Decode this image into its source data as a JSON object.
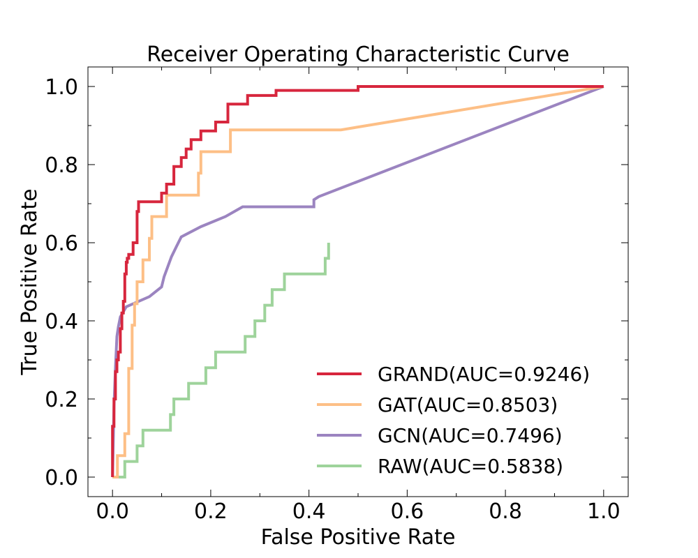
{
  "chart_data": {
    "type": "line",
    "title": "Receiver Operating Characteristic Curve",
    "xlabel": "False Positive Rate",
    "ylabel": "True Positive Rate",
    "xlim": [
      -0.05,
      1.05
    ],
    "ylim": [
      -0.05,
      1.05
    ],
    "xticks": [
      0.0,
      0.2,
      0.4,
      0.6,
      0.8,
      1.0
    ],
    "xtick_labels": [
      "0.0",
      "0.2",
      "0.4",
      "0.6",
      "0.8",
      "1.0"
    ],
    "yticks": [
      0.0,
      0.2,
      0.4,
      0.6,
      0.8,
      1.0
    ],
    "ytick_labels": [
      "0.0",
      "0.2",
      "0.4",
      "0.6",
      "0.8",
      "1.0"
    ],
    "minor_step": 0.1,
    "grid": false,
    "legend_position": "lower-right",
    "series": [
      {
        "name": "GRAND(AUC=0.9246)",
        "color": "#d7263d",
        "x": [
          0.0,
          0.0,
          0.003,
          0.003,
          0.006,
          0.006,
          0.009,
          0.009,
          0.012,
          0.012,
          0.016,
          0.016,
          0.019,
          0.019,
          0.022,
          0.022,
          0.025,
          0.025,
          0.028,
          0.028,
          0.03,
          0.03,
          0.033,
          0.033,
          0.042,
          0.042,
          0.05,
          0.05,
          0.053,
          0.053,
          0.1,
          0.1,
          0.11,
          0.11,
          0.125,
          0.125,
          0.14,
          0.14,
          0.15,
          0.15,
          0.16,
          0.16,
          0.18,
          0.18,
          0.21,
          0.21,
          0.235,
          0.235,
          0.275,
          0.275,
          0.333,
          0.333,
          0.5,
          0.5,
          1.0
        ],
        "y": [
          0.0,
          0.13,
          0.13,
          0.2,
          0.2,
          0.27,
          0.27,
          0.3,
          0.3,
          0.32,
          0.32,
          0.38,
          0.38,
          0.42,
          0.42,
          0.45,
          0.45,
          0.52,
          0.52,
          0.55,
          0.55,
          0.56,
          0.56,
          0.57,
          0.57,
          0.6,
          0.6,
          0.68,
          0.68,
          0.705,
          0.705,
          0.727,
          0.727,
          0.75,
          0.75,
          0.795,
          0.795,
          0.818,
          0.818,
          0.84,
          0.84,
          0.864,
          0.864,
          0.886,
          0.886,
          0.909,
          0.909,
          0.955,
          0.955,
          0.977,
          0.977,
          0.99,
          0.99,
          1.0,
          1.0
        ]
      },
      {
        "name": "GAT(AUC=0.8503)",
        "color": "#fdbf86",
        "x": [
          0.0,
          0.01,
          0.01,
          0.025,
          0.025,
          0.033,
          0.033,
          0.04,
          0.04,
          0.045,
          0.045,
          0.05,
          0.05,
          0.062,
          0.062,
          0.075,
          0.075,
          0.08,
          0.08,
          0.11,
          0.11,
          0.175,
          0.175,
          0.18,
          0.18,
          0.24,
          0.24,
          0.465,
          1.0
        ],
        "y": [
          0.0,
          0.0,
          0.055,
          0.055,
          0.111,
          0.111,
          0.278,
          0.278,
          0.389,
          0.389,
          0.444,
          0.444,
          0.5,
          0.5,
          0.556,
          0.556,
          0.611,
          0.611,
          0.667,
          0.667,
          0.722,
          0.722,
          0.778,
          0.778,
          0.833,
          0.833,
          0.889,
          0.889,
          1.0
        ]
      },
      {
        "name": "GCN(AUC=0.7496)",
        "color": "#9b84c0",
        "x": [
          0.0,
          0.003,
          0.003,
          0.006,
          0.006,
          0.009,
          0.009,
          0.012,
          0.012,
          0.016,
          0.016,
          0.028,
          0.028,
          0.075,
          0.075,
          0.1,
          0.1,
          0.105,
          0.105,
          0.12,
          0.12,
          0.13,
          0.13,
          0.14,
          0.14,
          0.18,
          0.18,
          0.23,
          0.23,
          0.265,
          0.265,
          0.41,
          0.41,
          0.42,
          1.0
        ],
        "y": [
          0.0,
          0.18,
          0.18,
          0.28,
          0.28,
          0.36,
          0.36,
          0.385,
          0.385,
          0.41,
          0.41,
          0.436,
          0.436,
          0.462,
          0.462,
          0.487,
          0.487,
          0.513,
          0.513,
          0.564,
          0.564,
          0.59,
          0.59,
          0.615,
          0.615,
          0.641,
          0.641,
          0.667,
          0.667,
          0.692,
          0.692,
          0.692,
          0.71,
          0.718,
          1.0
        ]
      },
      {
        "name": "RAW(AUC=0.5838)",
        "color": "#9ed39b",
        "x": [
          0.0,
          0.025,
          0.025,
          0.05,
          0.05,
          0.062,
          0.062,
          0.118,
          0.118,
          0.125,
          0.125,
          0.155,
          0.155,
          0.19,
          0.19,
          0.21,
          0.21,
          0.27,
          0.27,
          0.29,
          0.29,
          0.31,
          0.31,
          0.325,
          0.325,
          0.35,
          0.35,
          0.433,
          0.433,
          0.44,
          0.44,
          0.44,
          0.44,
          0.44,
          0.44,
          0.44,
          0.44,
          0.44,
          0.44,
          0.44,
          0.44,
          0.44,
          0.44,
          0.44,
          0.44,
          0.44,
          0.44,
          0.44,
          0.44,
          0.44,
          0.44,
          0.44,
          0.44,
          0.44,
          0.44
        ],
        "y": [
          0.0,
          0.0,
          0.04,
          0.04,
          0.08,
          0.08,
          0.12,
          0.12,
          0.16,
          0.16,
          0.2,
          0.2,
          0.24,
          0.24,
          0.28,
          0.28,
          0.32,
          0.32,
          0.36,
          0.36,
          0.4,
          0.4,
          0.44,
          0.44,
          0.48,
          0.48,
          0.52,
          0.52,
          0.56,
          0.56,
          0.6,
          0.6,
          0.6,
          0.6,
          0.6,
          0.6,
          0.6,
          0.6,
          0.6,
          0.6,
          0.6,
          0.6,
          0.6,
          0.6,
          0.6,
          0.6,
          0.6,
          0.6,
          0.6,
          0.6,
          0.6,
          0.6,
          0.6,
          0.6,
          0.6
        ]
      }
    ]
  }
}
